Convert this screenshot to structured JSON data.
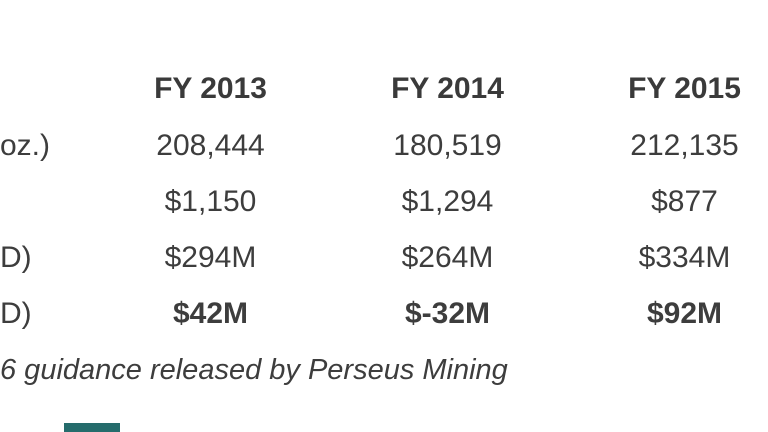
{
  "table": {
    "headers": [
      "FY 2013",
      "FY 2014",
      "FY 2015"
    ],
    "rows": [
      {
        "label": "oz.)",
        "values": [
          "208,444",
          "180,519",
          "212,135"
        ]
      },
      {
        "label": "",
        "values": [
          "$1,150",
          "$1,294",
          "$877"
        ]
      },
      {
        "label": "D)",
        "values": [
          "$294M",
          "$264M",
          "$334M"
        ]
      },
      {
        "label": "D)",
        "values": [
          "$42M",
          "$-32M",
          "$92M"
        ]
      }
    ]
  },
  "caption": "6 guidance released by Perseus Mining",
  "colors": {
    "text": "#3d3d3d",
    "accent_bar": "#256c6c"
  }
}
